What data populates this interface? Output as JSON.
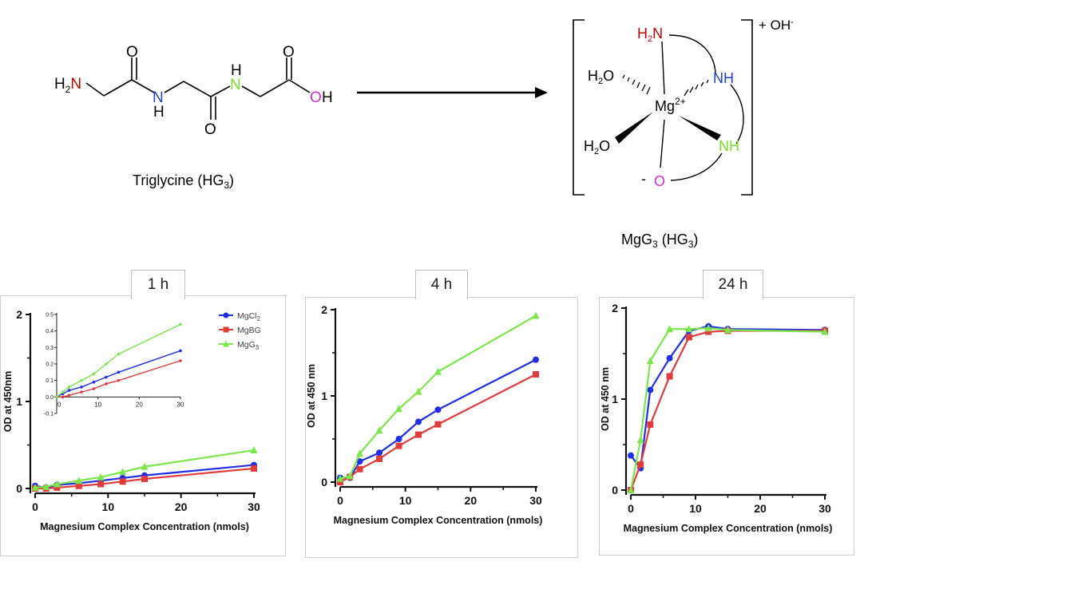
{
  "scheme": {
    "reactant_caption": "Triglycine (HG",
    "reactant_caption_sub": "3",
    "reactant_caption_end": ")",
    "product_caption": "MgG",
    "product_caption_sub": "3",
    "product_caption_mid": " (HG",
    "product_caption_sub2": "3",
    "product_caption_end": ")",
    "counter_ion": "+ OH",
    "counter_ion_sup": "-",
    "charge_minus": "-",
    "atoms": {
      "h2n_H": "H",
      "h2n_sub": "2",
      "h2n_N": "N",
      "o1": "O",
      "o2": "O",
      "o3": "O",
      "nh1_N": "N",
      "nh1_H": "H",
      "nh2_H": "H",
      "nh2_N": "N",
      "oh_O": "O",
      "oh_H": "H",
      "mg": "Mg",
      "mg_charge": "2+",
      "c_h2n_H": "H",
      "c_h2n_sub": "2",
      "c_h2n_N": "N",
      "c_nh_blue": "NH",
      "c_nh_green": "NH",
      "c_o": "O",
      "c_h2o1": "H",
      "c_h2o1_sub": "2",
      "c_h2o1_O": "O",
      "c_h2o2": "H",
      "c_h2o2_sub": "2",
      "c_h2o2_O": "O"
    },
    "colors": {
      "red": "#c00000",
      "blue": "#1f3fd6",
      "green": "#7ae02a",
      "magenta": "#d62fd6",
      "black": "#000000"
    }
  },
  "chart_data": [
    {
      "type": "line",
      "tab_label": "1 h",
      "xlabel": "Magnesium Complex Concentration (nmols)",
      "ylabel": "OD at 450nm",
      "xlim": [
        0,
        30
      ],
      "ylim": [
        0,
        2
      ],
      "xticks": [
        "0",
        "10",
        "20",
        "30"
      ],
      "yticks": [
        "0",
        "1",
        "2"
      ],
      "x": [
        0,
        1.5,
        3,
        6,
        9,
        12,
        15,
        30
      ],
      "series": [
        {
          "name": "MgCl",
          "name_sub": "2",
          "color": "#1f2fe6",
          "marker": "circle",
          "values": [
            0.03,
            0.01,
            0.04,
            0.06,
            0.09,
            0.12,
            0.15,
            0.27
          ]
        },
        {
          "name": "MgBG",
          "color": "#e03c3c",
          "marker": "square",
          "values": [
            0.0,
            0.0,
            0.01,
            0.03,
            0.05,
            0.08,
            0.11,
            0.23
          ]
        },
        {
          "name": "MgG",
          "name_sub": "3",
          "color": "#7ae84a",
          "marker": "triangle",
          "values": [
            0.01,
            0.02,
            0.05,
            0.09,
            0.13,
            0.19,
            0.25,
            0.44
          ]
        }
      ],
      "legend_position": "top-right",
      "inset": {
        "xlim": [
          0,
          30
        ],
        "ylim": [
          -0.1,
          0.5
        ],
        "xticks": [
          "10",
          "20",
          "30"
        ],
        "yticks": [
          "0.5",
          "0.4",
          "0.3",
          "0.2",
          "0.1",
          "0.0",
          "-0.1"
        ],
        "x0_label": "0",
        "series": [
          {
            "color": "#1f2fe6",
            "values": [
              0.0,
              0.02,
              0.04,
              0.06,
              0.09,
              0.12,
              0.15,
              0.28
            ]
          },
          {
            "color": "#e03c3c",
            "values": [
              0.0,
              0.0,
              0.01,
              0.03,
              0.05,
              0.08,
              0.1,
              0.22
            ]
          },
          {
            "color": "#7ae84a",
            "values": [
              0.0,
              0.03,
              0.06,
              0.1,
              0.14,
              0.2,
              0.26,
              0.44
            ]
          }
        ]
      }
    },
    {
      "type": "line",
      "tab_label": "4 h",
      "xlabel": "Magnesium Complex Concentration (nmols)",
      "ylabel": "OD at 450 nm",
      "xlim": [
        0,
        30
      ],
      "ylim": [
        0,
        2
      ],
      "xticks": [
        "0",
        "10",
        "20",
        "30"
      ],
      "yticks": [
        "0",
        "1",
        "2"
      ],
      "x": [
        0,
        1.5,
        3,
        6,
        9,
        12,
        15,
        30
      ],
      "series": [
        {
          "name": "MgCl2",
          "color": "#1f2fe6",
          "marker": "circle",
          "values": [
            0.05,
            0.05,
            0.24,
            0.34,
            0.5,
            0.7,
            0.84,
            1.42
          ]
        },
        {
          "name": "MgBG",
          "color": "#e03c3c",
          "marker": "square",
          "values": [
            0.0,
            0.06,
            0.15,
            0.27,
            0.42,
            0.55,
            0.67,
            1.25
          ]
        },
        {
          "name": "MgG3",
          "color": "#7ae84a",
          "marker": "triangle",
          "values": [
            0.04,
            0.07,
            0.33,
            0.6,
            0.85,
            1.05,
            1.28,
            1.93
          ]
        }
      ]
    },
    {
      "type": "line",
      "tab_label": "24 h",
      "xlabel": "Magnesium Complex Concentration (nmols)",
      "ylabel": "OD at 450 nm",
      "xlim": [
        0,
        30
      ],
      "ylim": [
        0,
        2
      ],
      "xticks": [
        "0",
        "10",
        "20",
        "30"
      ],
      "yticks": [
        "0",
        "1",
        "2"
      ],
      "x": [
        0,
        1.5,
        3,
        6,
        9,
        12,
        15,
        30
      ],
      "series": [
        {
          "name": "MgCl2",
          "color": "#1f2fe6",
          "marker": "circle",
          "values": [
            0.38,
            0.24,
            1.1,
            1.45,
            1.75,
            1.8,
            1.77,
            1.76
          ]
        },
        {
          "name": "MgBG",
          "color": "#e03c3c",
          "marker": "square",
          "values": [
            0.0,
            0.28,
            0.72,
            1.25,
            1.68,
            1.74,
            1.75,
            1.75
          ]
        },
        {
          "name": "MgG3",
          "color": "#7ae84a",
          "marker": "triangle",
          "values": [
            0.0,
            0.55,
            1.42,
            1.77,
            1.77,
            1.78,
            1.76,
            1.74
          ]
        }
      ]
    }
  ]
}
